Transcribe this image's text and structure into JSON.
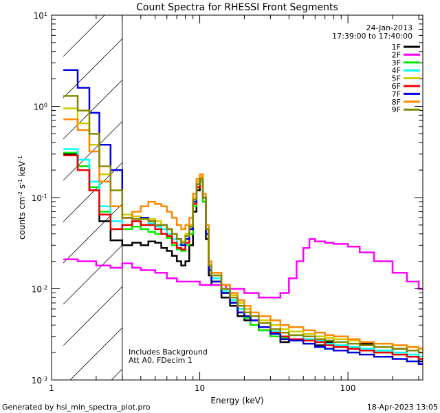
{
  "chart_data": {
    "type": "line",
    "title": "Count Spectra for RHESSI Front Segments",
    "xlabel": "Energy (keV)",
    "ylabel_parts": [
      "counts cm",
      "-2",
      " s",
      "-1",
      " keV",
      "-1"
    ],
    "xscale": "log",
    "yscale": "log",
    "xlim": [
      1,
      320
    ],
    "ylim": [
      0.001,
      10
    ],
    "x_ticks": [
      {
        "value": 1,
        "label": "1"
      },
      {
        "value": 10,
        "label": "10"
      },
      {
        "value": 100,
        "label": "100"
      }
    ],
    "y_ticks": [
      {
        "value": 0.001,
        "base": "10",
        "exp": "-3"
      },
      {
        "value": 0.01,
        "base": "10",
        "exp": "-2"
      },
      {
        "value": 0.1,
        "base": "10",
        "exp": "-1"
      },
      {
        "value": 1,
        "base": "10",
        "exp": "0"
      },
      {
        "value": 10,
        "base": "10",
        "exp": "1"
      }
    ],
    "excluded_region_kev": [
      1.2,
      3.0
    ],
    "date": "24-Jan-2013",
    "time_range": "17:39:00 to 17:40:00",
    "annotations": [
      "Includes Background",
      "Att A0, FDecim 1"
    ],
    "series": [
      {
        "name": "1F",
        "color": "#000000",
        "x": [
          1.2,
          1.5,
          1.8,
          2.1,
          2.5,
          3,
          3.5,
          4,
          4.5,
          5,
          5.5,
          6,
          6.5,
          7,
          7.5,
          8,
          8.5,
          9,
          9.5,
          10,
          10.5,
          11,
          11.5,
          12,
          14,
          16,
          18,
          20,
          22,
          25,
          30,
          35,
          40,
          50,
          60,
          70,
          80,
          100,
          120,
          150,
          200,
          250,
          300
        ],
        "y": [
          0.3,
          0.22,
          0.12,
          0.055,
          0.034,
          0.03,
          0.032,
          0.03,
          0.033,
          0.032,
          0.028,
          0.026,
          0.023,
          0.02,
          0.018,
          0.02,
          0.03,
          0.07,
          0.12,
          0.16,
          0.09,
          0.035,
          0.014,
          0.011,
          0.008,
          0.0065,
          0.005,
          0.0045,
          0.004,
          0.0035,
          0.003,
          0.0026,
          0.0028,
          0.0027,
          0.0024,
          0.0026,
          0.0023,
          0.0022,
          0.0025,
          0.0021,
          0.0022,
          0.0018,
          0.0016
        ]
      },
      {
        "name": "2F",
        "color": "#ff00ff",
        "x": [
          1.2,
          1.5,
          2,
          2.5,
          3,
          3.5,
          4,
          5,
          6,
          7,
          8,
          10,
          12,
          15,
          20,
          25,
          30,
          35,
          40,
          45,
          50,
          55,
          60,
          70,
          80,
          90,
          100,
          120,
          150,
          200,
          250,
          300
        ],
        "y": [
          0.021,
          0.02,
          0.018,
          0.017,
          0.019,
          0.017,
          0.016,
          0.015,
          0.013,
          0.012,
          0.012,
          0.011,
          0.011,
          0.01,
          0.009,
          0.008,
          0.008,
          0.009,
          0.013,
          0.02,
          0.028,
          0.035,
          0.033,
          0.032,
          0.031,
          0.031,
          0.029,
          0.025,
          0.02,
          0.015,
          0.012,
          0.01
        ]
      },
      {
        "name": "3F",
        "color": "#00ee00",
        "x": [
          1.2,
          1.5,
          1.8,
          2.1,
          2.5,
          3,
          3.5,
          4,
          4.5,
          5,
          5.5,
          6,
          6.5,
          7,
          7.5,
          8,
          8.5,
          9,
          9.5,
          10,
          10.5,
          11,
          11.5,
          12,
          14,
          16,
          18,
          20,
          22,
          25,
          30,
          35,
          40,
          50,
          60,
          70,
          80,
          100,
          120,
          150,
          200,
          250,
          300
        ],
        "y": [
          0.31,
          0.22,
          0.13,
          0.07,
          0.045,
          0.045,
          0.048,
          0.045,
          0.042,
          0.04,
          0.04,
          0.036,
          0.03,
          0.027,
          0.026,
          0.03,
          0.04,
          0.08,
          0.13,
          0.15,
          0.09,
          0.04,
          0.016,
          0.012,
          0.009,
          0.007,
          0.0055,
          0.0048,
          0.004,
          0.0035,
          0.003,
          0.0029,
          0.0028,
          0.0027,
          0.0026,
          0.0022,
          0.0024,
          0.0023,
          0.0021,
          0.002,
          0.0019,
          0.0018,
          0.0017
        ]
      },
      {
        "name": "4F",
        "color": "#00ffff",
        "x": [
          1.2,
          1.5,
          1.8,
          2.1,
          2.5,
          3,
          3.5,
          4,
          4.5,
          5,
          5.5,
          6,
          6.5,
          7,
          7.5,
          8,
          8.5,
          9,
          9.5,
          10,
          10.5,
          11,
          11.5,
          12,
          14,
          16,
          18,
          20,
          22,
          25,
          30,
          35,
          40,
          50,
          60,
          70,
          80,
          100,
          120,
          150,
          200,
          250,
          300
        ],
        "y": [
          0.34,
          0.26,
          0.15,
          0.08,
          0.055,
          0.05,
          0.055,
          0.05,
          0.052,
          0.048,
          0.045,
          0.04,
          0.035,
          0.03,
          0.03,
          0.035,
          0.045,
          0.09,
          0.14,
          0.17,
          0.1,
          0.04,
          0.017,
          0.013,
          0.0095,
          0.0075,
          0.006,
          0.005,
          0.0045,
          0.0038,
          0.0034,
          0.003,
          0.0031,
          0.0028,
          0.0027,
          0.0025,
          0.0024,
          0.0023,
          0.0022,
          0.0021,
          0.002,
          0.0019,
          0.0018
        ]
      },
      {
        "name": "5F",
        "color": "#cccc00",
        "x": [
          1.2,
          1.5,
          1.8,
          2.1,
          2.5,
          3,
          3.5,
          4,
          4.5,
          5,
          5.5,
          6,
          6.5,
          7,
          7.5,
          8,
          8.5,
          9,
          9.5,
          10,
          10.5,
          11,
          11.5,
          12,
          14,
          16,
          18,
          20,
          22,
          25,
          30,
          35,
          40,
          50,
          60,
          70,
          80,
          100,
          120,
          150,
          200,
          250,
          300
        ],
        "y": [
          0.95,
          0.65,
          0.38,
          0.18,
          0.08,
          0.065,
          0.062,
          0.06,
          0.058,
          0.055,
          0.05,
          0.045,
          0.04,
          0.035,
          0.033,
          0.04,
          0.05,
          0.1,
          0.15,
          0.17,
          0.1,
          0.045,
          0.018,
          0.014,
          0.011,
          0.0085,
          0.007,
          0.006,
          0.005,
          0.0045,
          0.004,
          0.0036,
          0.0034,
          0.0032,
          0.003,
          0.0029,
          0.0028,
          0.0027,
          0.0026,
          0.0025,
          0.0024,
          0.0023,
          0.0022
        ]
      },
      {
        "name": "6F",
        "color": "#ee0000",
        "x": [
          1.2,
          1.5,
          1.8,
          2.1,
          2.5,
          3,
          3.5,
          4,
          4.5,
          5,
          5.5,
          6,
          6.5,
          7,
          7.5,
          8,
          8.5,
          9,
          9.5,
          10,
          10.5,
          11,
          11.5,
          12,
          14,
          16,
          18,
          20,
          22,
          25,
          30,
          35,
          40,
          50,
          60,
          70,
          80,
          100,
          120,
          150,
          200,
          250,
          300
        ],
        "y": [
          0.29,
          0.2,
          0.12,
          0.065,
          0.045,
          0.05,
          0.055,
          0.05,
          0.05,
          0.045,
          0.04,
          0.038,
          0.032,
          0.028,
          0.027,
          0.032,
          0.045,
          0.085,
          0.13,
          0.16,
          0.1,
          0.04,
          0.016,
          0.012,
          0.009,
          0.007,
          0.0055,
          0.005,
          0.0045,
          0.0038,
          0.0033,
          0.003,
          0.0028,
          0.0027,
          0.0026,
          0.0024,
          0.0023,
          0.0022,
          0.0021,
          0.002,
          0.0019,
          0.0018,
          0.0017
        ]
      },
      {
        "name": "7F",
        "color": "#0000dd",
        "x": [
          1.2,
          1.5,
          1.8,
          2.1,
          2.5,
          3,
          3.5,
          4,
          4.5,
          5,
          5.5,
          6,
          6.5,
          7,
          7.5,
          8,
          8.5,
          9,
          9.5,
          10,
          10.5,
          11,
          11.5,
          12,
          14,
          16,
          18,
          20,
          22,
          25,
          30,
          35,
          40,
          50,
          60,
          70,
          80,
          100,
          120,
          150,
          200,
          250,
          300
        ],
        "y": [
          2.5,
          1.6,
          0.85,
          0.38,
          0.2,
          0.06,
          0.058,
          0.06,
          0.055,
          0.05,
          0.05,
          0.045,
          0.04,
          0.035,
          0.03,
          0.035,
          0.045,
          0.09,
          0.14,
          0.16,
          0.1,
          0.04,
          0.016,
          0.012,
          0.009,
          0.007,
          0.0055,
          0.005,
          0.0045,
          0.0038,
          0.0032,
          0.0028,
          0.0027,
          0.0025,
          0.0023,
          0.0022,
          0.0021,
          0.002,
          0.0019,
          0.0018,
          0.0017,
          0.0016,
          0.0015
        ]
      },
      {
        "name": "8F",
        "color": "#ff8800",
        "x": [
          1.2,
          1.5,
          1.8,
          2.1,
          2.5,
          3,
          3.5,
          4,
          4.5,
          5,
          5.5,
          6,
          6.5,
          7,
          7.5,
          8,
          8.5,
          9,
          9.5,
          10,
          10.5,
          11,
          11.5,
          12,
          14,
          16,
          18,
          20,
          22,
          25,
          30,
          35,
          40,
          50,
          60,
          70,
          80,
          100,
          120,
          150,
          200,
          250,
          300
        ],
        "y": [
          0.72,
          0.55,
          0.32,
          0.15,
          0.08,
          0.06,
          0.07,
          0.08,
          0.09,
          0.085,
          0.08,
          0.07,
          0.06,
          0.05,
          0.045,
          0.05,
          0.06,
          0.11,
          0.16,
          0.18,
          0.11,
          0.05,
          0.02,
          0.015,
          0.011,
          0.009,
          0.0075,
          0.0065,
          0.0055,
          0.005,
          0.0045,
          0.004,
          0.0038,
          0.0035,
          0.0033,
          0.0031,
          0.003,
          0.0028,
          0.0026,
          0.0025,
          0.0024,
          0.0023,
          0.0022
        ]
      },
      {
        "name": "9F",
        "color": "#888800",
        "x": [
          1.2,
          1.5,
          1.8,
          2.1,
          2.5,
          3,
          3.5,
          4,
          4.5,
          5,
          5.5,
          6,
          6.5,
          7,
          7.5,
          8,
          8.5,
          9,
          9.5,
          10,
          10.5,
          11,
          11.5,
          12,
          14,
          16,
          18,
          20,
          22,
          25,
          30,
          35,
          40,
          50,
          60,
          70,
          80,
          100,
          120,
          150,
          200,
          250,
          300
        ],
        "y": [
          1.3,
          0.9,
          0.5,
          0.22,
          0.12,
          0.06,
          0.058,
          0.058,
          0.055,
          0.05,
          0.05,
          0.045,
          0.04,
          0.035,
          0.032,
          0.038,
          0.048,
          0.095,
          0.14,
          0.16,
          0.1,
          0.045,
          0.018,
          0.014,
          0.01,
          0.008,
          0.0065,
          0.0055,
          0.005,
          0.0042,
          0.0036,
          0.0033,
          0.0031,
          0.003,
          0.0028,
          0.0027,
          0.0026,
          0.0025,
          0.0024,
          0.0023,
          0.0022,
          0.0021,
          0.002
        ]
      }
    ]
  },
  "footer": {
    "generator": "Generated by hsi_min_spectra_plot.pro",
    "timestamp": "18-Apr-2023 13:05"
  }
}
